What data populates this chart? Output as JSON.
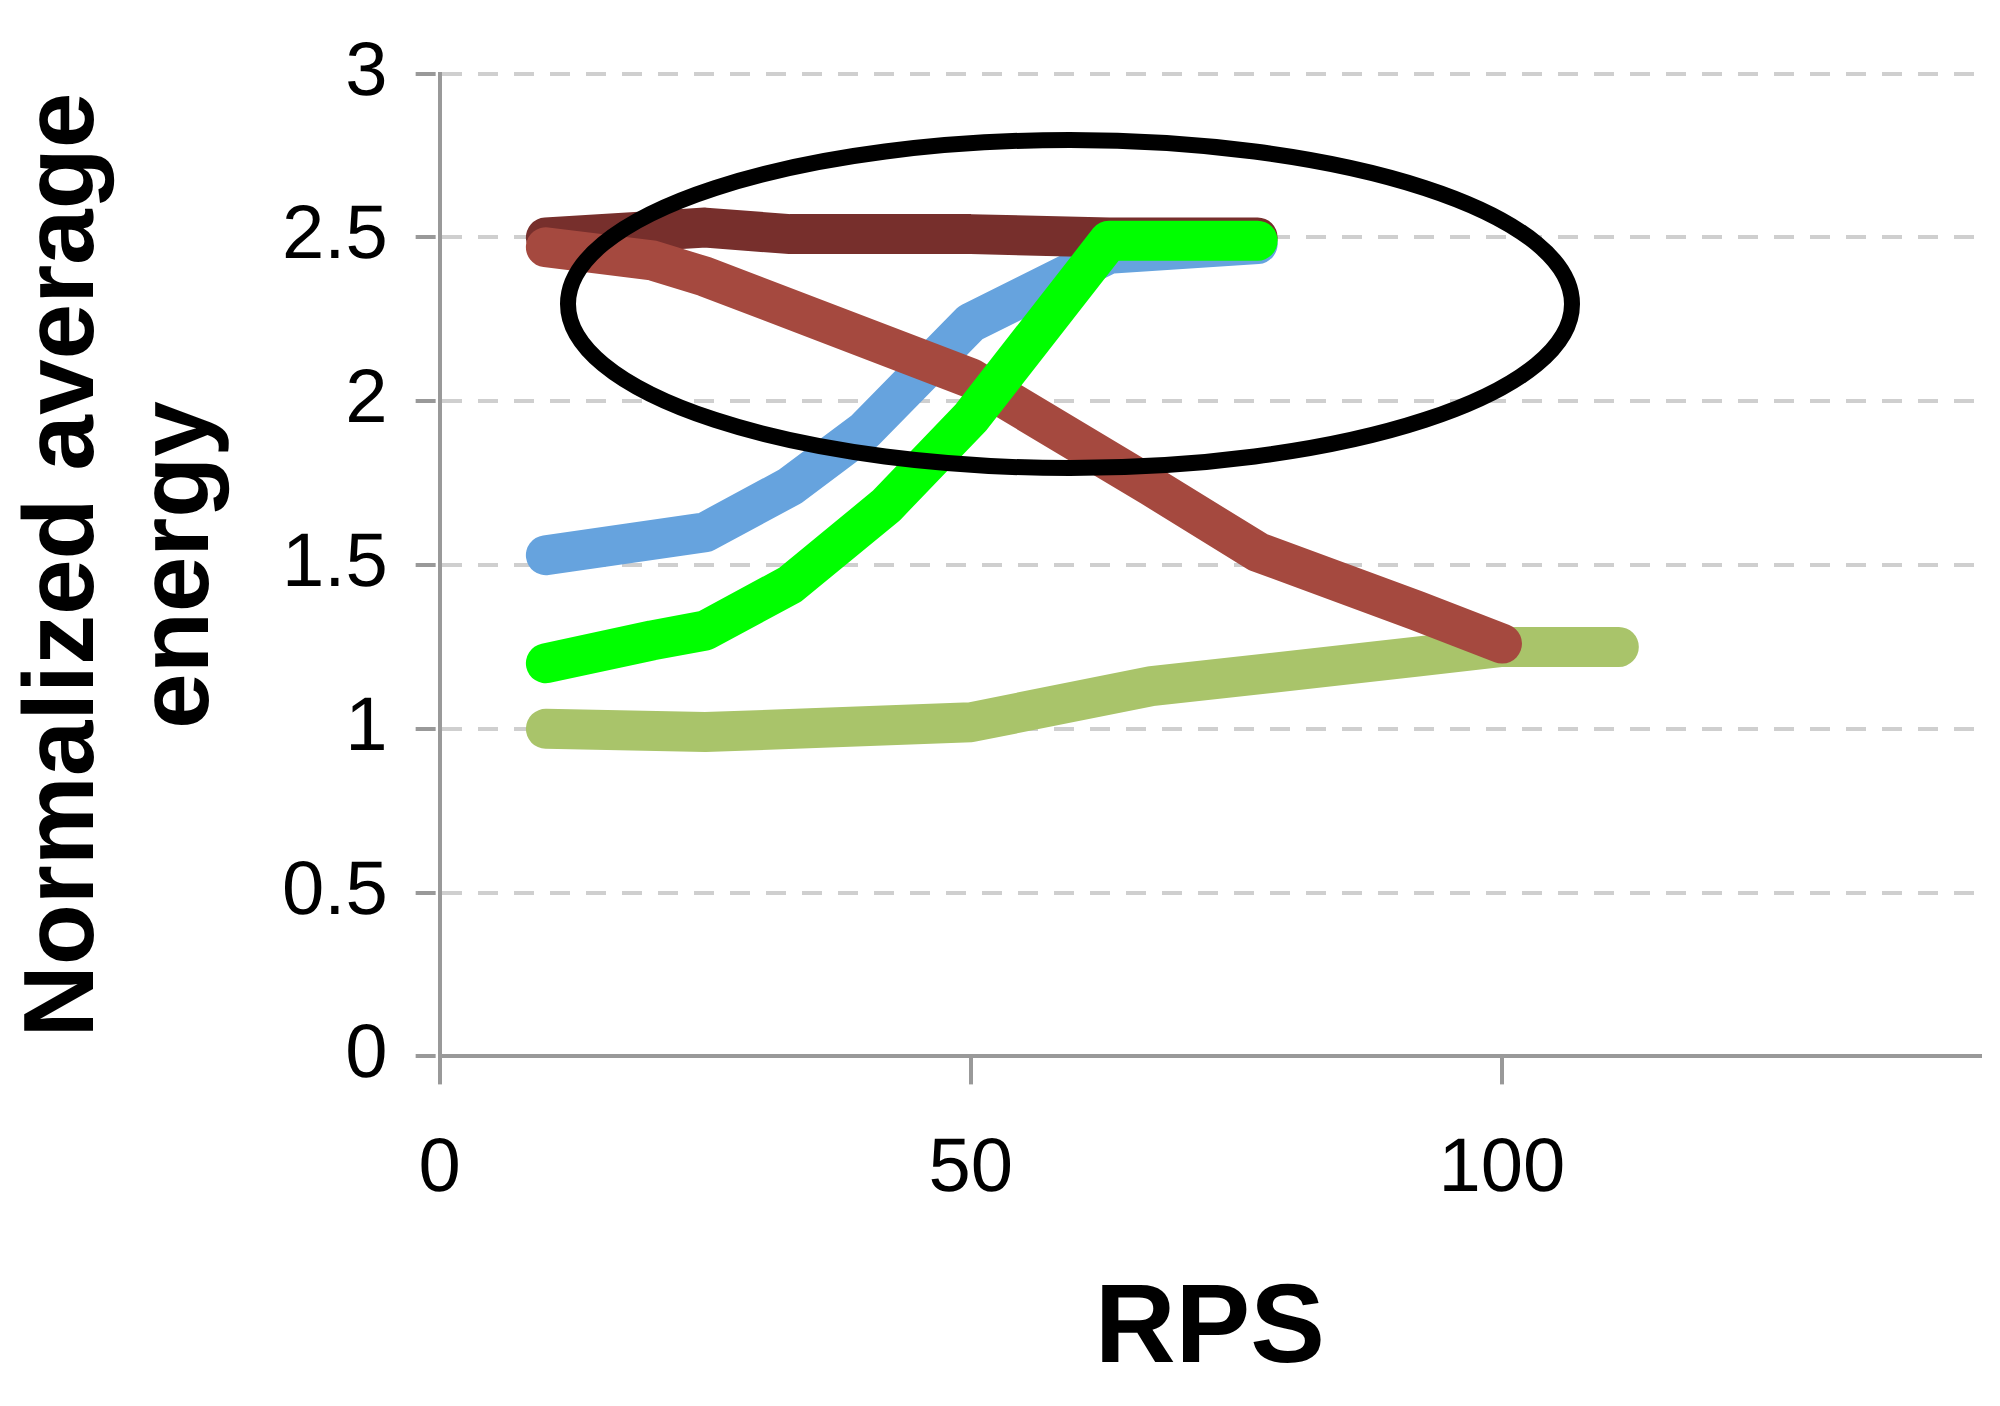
{
  "chart_data": {
    "type": "line",
    "xlabel": "RPS",
    "ylabel": "Normalized average energy",
    "xlim": [
      0,
      145
    ],
    "xticks": [
      0,
      50,
      100
    ],
    "ylim": [
      0,
      3
    ],
    "yticks": [
      0,
      0.5,
      1,
      1.5,
      2,
      2.5,
      3
    ],
    "grid": "y",
    "legend": false,
    "marker": "none",
    "line_style": "solid",
    "series": [
      {
        "color": "#a9c46a",
        "x": [
          10,
          25,
          50,
          67,
          92,
          100,
          111
        ],
        "values": [
          1.0,
          0.99,
          1.02,
          1.13,
          1.22,
          1.25,
          1.25
        ]
      },
      {
        "color": "#66a3de",
        "x": [
          10,
          25,
          33,
          40,
          50,
          63,
          77
        ],
        "values": [
          1.53,
          1.6,
          1.74,
          1.91,
          2.24,
          2.45,
          2.48
        ]
      },
      {
        "color": "#772f2c",
        "x": [
          10,
          20,
          25,
          33,
          50,
          63,
          77
        ],
        "values": [
          2.5,
          2.52,
          2.53,
          2.51,
          2.51,
          2.5,
          2.5
        ]
      },
      {
        "color": "#a5493f",
        "x": [
          10,
          20,
          25,
          50,
          67,
          77,
          92,
          100
        ],
        "values": [
          2.47,
          2.43,
          2.38,
          2.07,
          1.74,
          1.54,
          1.36,
          1.26
        ]
      },
      {
        "color": "#00ff00",
        "x": [
          10,
          20,
          25,
          33,
          42,
          50,
          63,
          77
        ],
        "values": [
          1.2,
          1.27,
          1.3,
          1.44,
          1.68,
          1.95,
          2.49,
          2.49
        ]
      }
    ]
  }
}
